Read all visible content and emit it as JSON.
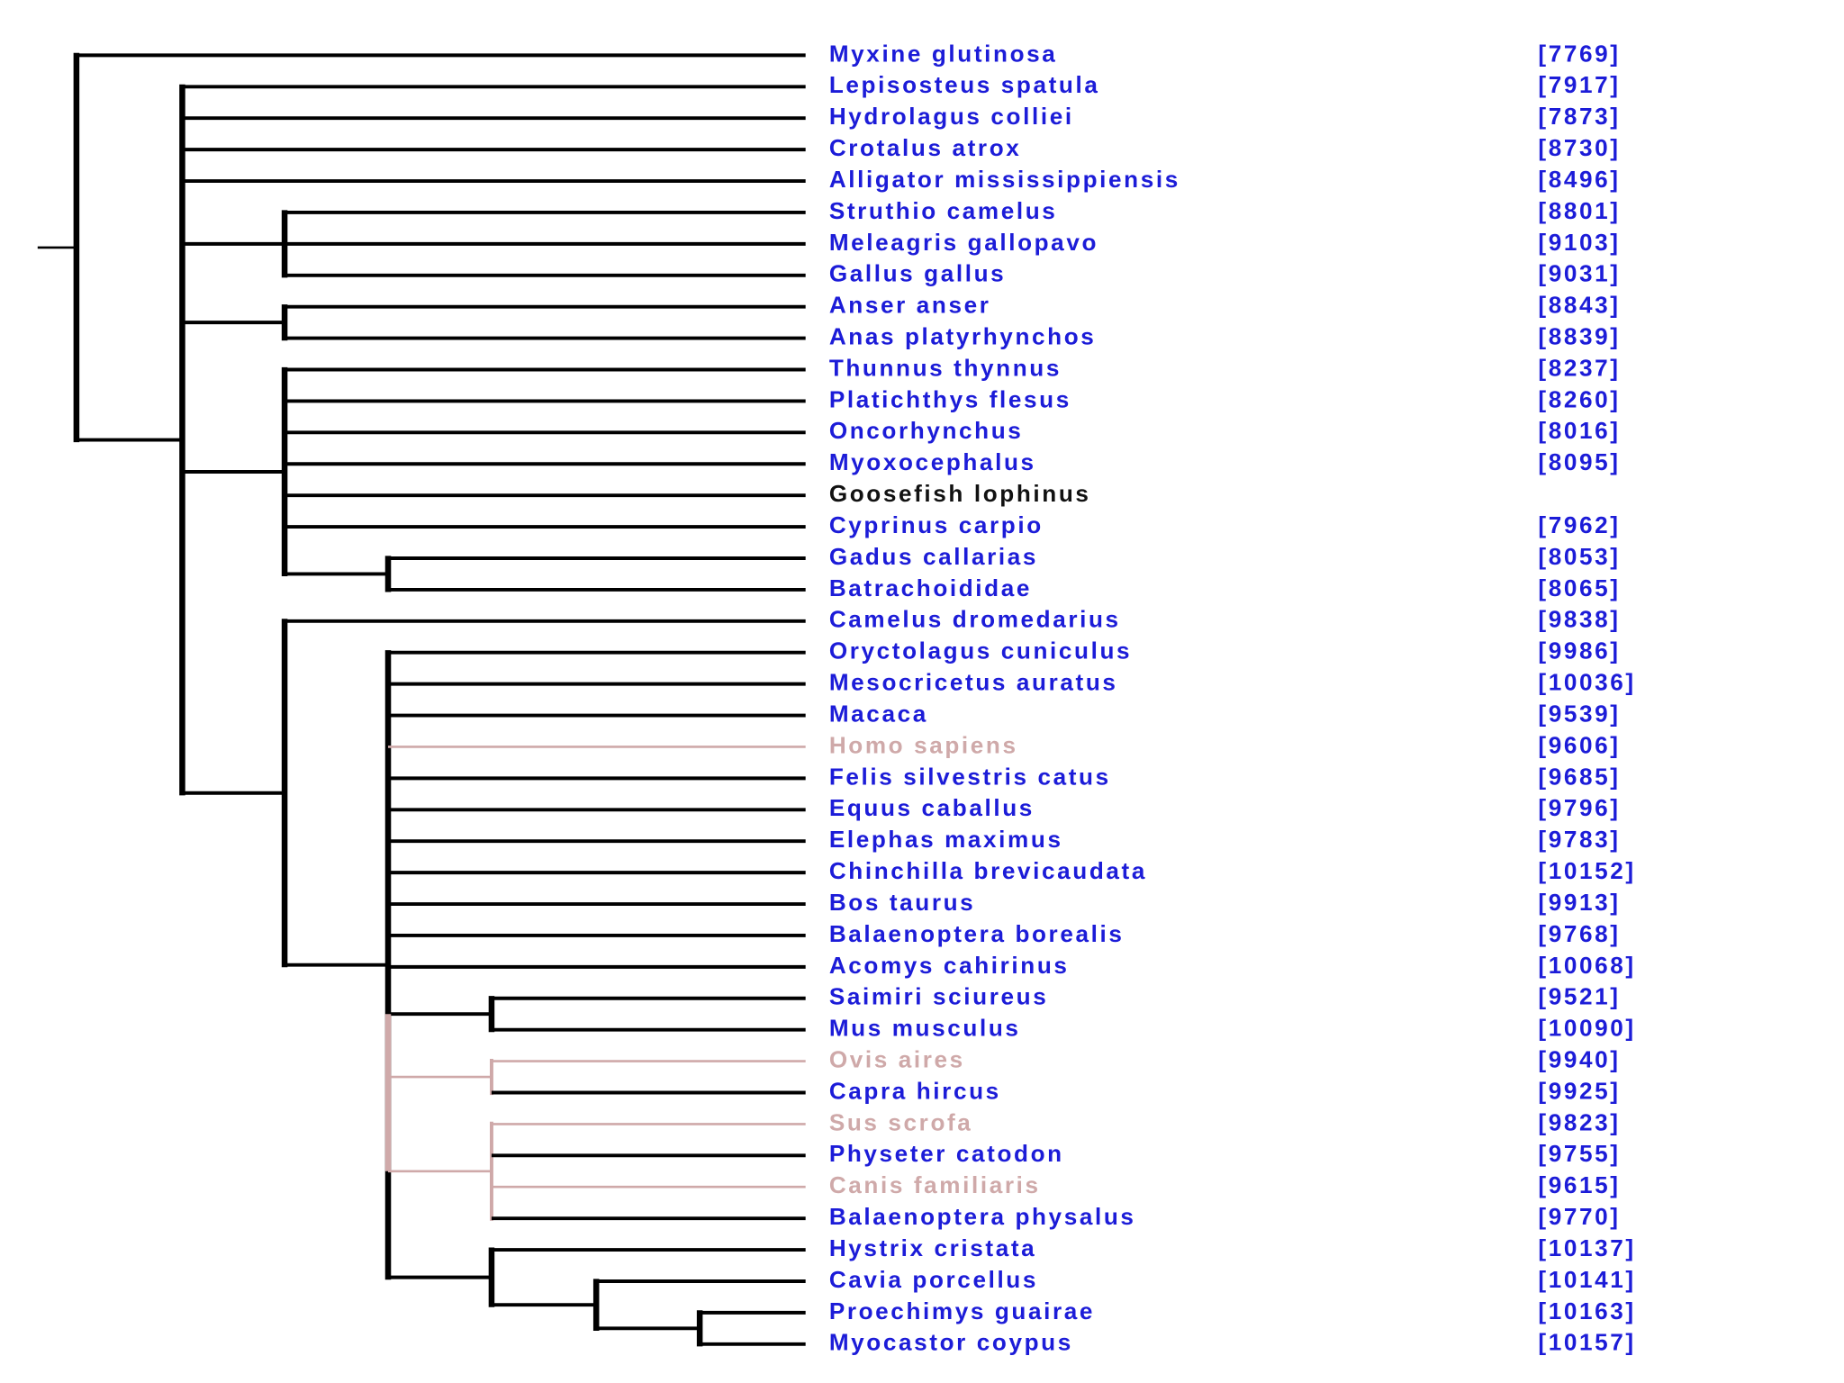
{
  "leaves": [
    {
      "name": "Myxine glutinosa",
      "id": "[7769]",
      "color": "#1c1cd8"
    },
    {
      "name": "Lepisosteus spatula",
      "id": "[7917]",
      "color": "#1c1cd8"
    },
    {
      "name": "Hydrolagus colliei",
      "id": "[7873]",
      "color": "#1c1cd8"
    },
    {
      "name": "Crotalus atrox",
      "id": "[8730]",
      "color": "#1c1cd8"
    },
    {
      "name": "Alligator mississippiensis",
      "id": "[8496]",
      "color": "#1c1cd8"
    },
    {
      "name": "Struthio camelus",
      "id": "[8801]",
      "color": "#1c1cd8"
    },
    {
      "name": "Meleagris gallopavo",
      "id": "[9103]",
      "color": "#1c1cd8"
    },
    {
      "name": "Gallus gallus",
      "id": "[9031]",
      "color": "#1c1cd8"
    },
    {
      "name": "Anser anser",
      "id": "[8843]",
      "color": "#1c1cd8"
    },
    {
      "name": "Anas platyrhynchos",
      "id": "[8839]",
      "color": "#1c1cd8"
    },
    {
      "name": "Thunnus thynnus",
      "id": "[8237]",
      "color": "#1c1cd8"
    },
    {
      "name": "Platichthys flesus",
      "id": "[8260]",
      "color": "#1c1cd8"
    },
    {
      "name": "Oncorhynchus",
      "id": "[8016]",
      "color": "#1c1cd8"
    },
    {
      "name": "Myoxocephalus",
      "id": "[8095]",
      "color": "#1c1cd8"
    },
    {
      "name": "Goosefish lophinus",
      "color": "#111111"
    },
    {
      "name": "Cyprinus carpio",
      "id": "[7962]",
      "color": "#1c1cd8"
    },
    {
      "name": "Gadus callarias",
      "id": "[8053]",
      "color": "#1c1cd8"
    },
    {
      "name": "Batrachoididae",
      "id": "[8065]",
      "color": "#1c1cd8"
    },
    {
      "name": "Camelus dromedarius",
      "id": "[9838]",
      "color": "#1c1cd8"
    },
    {
      "name": "Oryctolagus cuniculus",
      "id": "[9986]",
      "color": "#1c1cd8"
    },
    {
      "name": "Mesocricetus auratus",
      "id": "[10036]",
      "color": "#1c1cd8"
    },
    {
      "name": "Macaca",
      "id": "[9539]",
      "color": "#1c1cd8"
    },
    {
      "name": "Homo sapiens",
      "id": "[9606]",
      "color": "#cfa9a9"
    },
    {
      "name": "Felis silvestris catus",
      "id": "[9685]",
      "color": "#1c1cd8"
    },
    {
      "name": "Equus caballus",
      "id": "[9796]",
      "color": "#1c1cd8"
    },
    {
      "name": "Elephas maximus",
      "id": "[9783]",
      "color": "#1c1cd8"
    },
    {
      "name": "Chinchilla brevicaudata",
      "id": "[10152]",
      "color": "#1c1cd8"
    },
    {
      "name": "Bos taurus",
      "id": "[9913]",
      "color": "#1c1cd8"
    },
    {
      "name": "Balaenoptera borealis",
      "id": "[9768]",
      "color": "#1c1cd8"
    },
    {
      "name": "Acomys cahirinus",
      "id": "[10068]",
      "color": "#1c1cd8"
    },
    {
      "name": "Saimiri sciureus",
      "id": "[9521]",
      "color": "#1c1cd8"
    },
    {
      "name": "Mus musculus",
      "id": "[10090]",
      "color": "#1c1cd8"
    },
    {
      "name": "Ovis aires",
      "id": "[9940]",
      "color": "#cfa9a9"
    },
    {
      "name": "Capra hircus",
      "id": "[9925]",
      "color": "#1c1cd8"
    },
    {
      "name": "Sus scrofa",
      "id": "[9823]",
      "color": "#cfa9a9"
    },
    {
      "name": "Physeter catodon",
      "id": "[9755]",
      "color": "#1c1cd8"
    },
    {
      "name": "Canis familiaris",
      "id": "[9615]",
      "color": "#cfa9a9"
    },
    {
      "name": "Balaenoptera physalus",
      "id": "[9770]",
      "color": "#1c1cd8"
    },
    {
      "name": "Hystrix cristata",
      "id": "[10137]",
      "color": "#1c1cd8"
    },
    {
      "name": "Cavia porcellus",
      "id": "[10141]",
      "color": "#1c1cd8"
    },
    {
      "name": "Proechimys guairae",
      "id": "[10163]",
      "color": "#1c1cd8"
    },
    {
      "name": "Myocastor coypus",
      "id": "[10157]",
      "color": "#1c1cd8"
    }
  ]
}
